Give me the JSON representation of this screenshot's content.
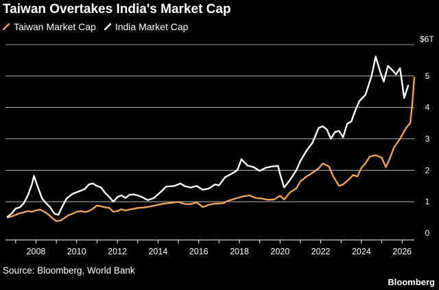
{
  "header": {
    "title": "Taiwan Overtakes India's Market Cap"
  },
  "footer": {
    "source": "Source: Bloomberg, World Bank",
    "brand": "Bloomberg"
  },
  "colors": {
    "background": "#000000",
    "taiwan": "#f0a35a",
    "india": "#ffffff",
    "grid": "#ffffff",
    "text": "#ffffff"
  },
  "chart_data": {
    "type": "line",
    "title": "Taiwan Overtakes India's Market Cap",
    "xlabel": "",
    "ylabel": "",
    "unit_label": "$6T",
    "xlim": [
      2006.5,
      2026.6
    ],
    "ylim": [
      0,
      6
    ],
    "x_ticks": [
      "2008",
      "2010",
      "2012",
      "2014",
      "2016",
      "2018",
      "2020",
      "2022",
      "2024",
      "2026"
    ],
    "y_ticks": [
      "0",
      "1",
      "2",
      "3",
      "4",
      "5"
    ],
    "grid": "horizontal",
    "legend_position": "top-left",
    "series": [
      {
        "name": "Taiwan Market Cap",
        "color": "#f0a35a",
        "points": [
          [
            2006.6,
            0.5
          ],
          [
            2006.8,
            0.53
          ],
          [
            2007.0,
            0.58
          ],
          [
            2007.2,
            0.63
          ],
          [
            2007.4,
            0.66
          ],
          [
            2007.6,
            0.7
          ],
          [
            2007.8,
            0.68
          ],
          [
            2008.0,
            0.72
          ],
          [
            2008.2,
            0.75
          ],
          [
            2008.4,
            0.68
          ],
          [
            2008.6,
            0.6
          ],
          [
            2008.8,
            0.48
          ],
          [
            2009.0,
            0.38
          ],
          [
            2009.2,
            0.4
          ],
          [
            2009.4,
            0.48
          ],
          [
            2009.6,
            0.57
          ],
          [
            2009.8,
            0.62
          ],
          [
            2010.0,
            0.68
          ],
          [
            2010.2,
            0.7
          ],
          [
            2010.4,
            0.67
          ],
          [
            2010.6,
            0.7
          ],
          [
            2010.8,
            0.78
          ],
          [
            2011.0,
            0.88
          ],
          [
            2011.2,
            0.85
          ],
          [
            2011.4,
            0.82
          ],
          [
            2011.6,
            0.8
          ],
          [
            2011.8,
            0.68
          ],
          [
            2012.0,
            0.7
          ],
          [
            2012.2,
            0.76
          ],
          [
            2012.4,
            0.72
          ],
          [
            2012.6,
            0.75
          ],
          [
            2012.8,
            0.77
          ],
          [
            2013.0,
            0.8
          ],
          [
            2013.4,
            0.82
          ],
          [
            2013.8,
            0.87
          ],
          [
            2014.2,
            0.93
          ],
          [
            2014.6,
            0.96
          ],
          [
            2015.0,
            0.99
          ],
          [
            2015.3,
            0.93
          ],
          [
            2015.6,
            0.92
          ],
          [
            2015.9,
            0.98
          ],
          [
            2016.2,
            0.83
          ],
          [
            2016.5,
            0.9
          ],
          [
            2016.8,
            0.94
          ],
          [
            2017.2,
            0.95
          ],
          [
            2017.4,
            1.02
          ],
          [
            2017.8,
            1.1
          ],
          [
            2018.2,
            1.17
          ],
          [
            2018.5,
            1.2
          ],
          [
            2018.8,
            1.12
          ],
          [
            2019.1,
            1.1
          ],
          [
            2019.4,
            1.06
          ],
          [
            2019.7,
            1.07
          ],
          [
            2020.0,
            1.19
          ],
          [
            2020.2,
            1.07
          ],
          [
            2020.5,
            1.3
          ],
          [
            2020.8,
            1.42
          ],
          [
            2021.0,
            1.65
          ],
          [
            2021.3,
            1.8
          ],
          [
            2021.6,
            1.92
          ],
          [
            2021.9,
            2.06
          ],
          [
            2022.1,
            2.22
          ],
          [
            2022.4,
            2.12
          ],
          [
            2022.6,
            1.82
          ],
          [
            2022.9,
            1.5
          ],
          [
            2023.1,
            1.55
          ],
          [
            2023.4,
            1.72
          ],
          [
            2023.6,
            1.85
          ],
          [
            2023.8,
            1.8
          ],
          [
            2024.0,
            2.08
          ],
          [
            2024.2,
            2.22
          ],
          [
            2024.4,
            2.43
          ],
          [
            2024.7,
            2.48
          ],
          [
            2025.0,
            2.4
          ],
          [
            2025.2,
            2.1
          ],
          [
            2025.4,
            2.38
          ],
          [
            2025.6,
            2.72
          ],
          [
            2025.9,
            3.0
          ],
          [
            2026.2,
            3.35
          ],
          [
            2026.4,
            3.5
          ],
          [
            2026.5,
            4.1
          ],
          [
            2026.6,
            4.95
          ]
        ]
      },
      {
        "name": "India Market Cap",
        "color": "#ffffff",
        "points": [
          [
            2006.6,
            0.52
          ],
          [
            2006.8,
            0.62
          ],
          [
            2007.0,
            0.78
          ],
          [
            2007.2,
            0.82
          ],
          [
            2007.4,
            0.95
          ],
          [
            2007.6,
            1.2
          ],
          [
            2007.8,
            1.55
          ],
          [
            2007.9,
            1.82
          ],
          [
            2008.1,
            1.45
          ],
          [
            2008.3,
            1.1
          ],
          [
            2008.5,
            0.95
          ],
          [
            2008.7,
            0.82
          ],
          [
            2008.9,
            0.62
          ],
          [
            2009.1,
            0.58
          ],
          [
            2009.3,
            0.85
          ],
          [
            2009.5,
            1.1
          ],
          [
            2009.8,
            1.25
          ],
          [
            2010.0,
            1.3
          ],
          [
            2010.2,
            1.35
          ],
          [
            2010.4,
            1.4
          ],
          [
            2010.6,
            1.55
          ],
          [
            2010.8,
            1.58
          ],
          [
            2011.0,
            1.5
          ],
          [
            2011.2,
            1.45
          ],
          [
            2011.4,
            1.28
          ],
          [
            2011.6,
            1.15
          ],
          [
            2011.8,
            1.0
          ],
          [
            2012.0,
            1.15
          ],
          [
            2012.2,
            1.2
          ],
          [
            2012.4,
            1.12
          ],
          [
            2012.6,
            1.22
          ],
          [
            2012.8,
            1.23
          ],
          [
            2013.0,
            1.2
          ],
          [
            2013.2,
            1.15
          ],
          [
            2013.5,
            1.05
          ],
          [
            2013.8,
            1.12
          ],
          [
            2014.2,
            1.35
          ],
          [
            2014.4,
            1.48
          ],
          [
            2014.8,
            1.5
          ],
          [
            2015.1,
            1.58
          ],
          [
            2015.3,
            1.5
          ],
          [
            2015.6,
            1.45
          ],
          [
            2015.9,
            1.5
          ],
          [
            2016.2,
            1.38
          ],
          [
            2016.5,
            1.42
          ],
          [
            2016.8,
            1.55
          ],
          [
            2017.0,
            1.52
          ],
          [
            2017.3,
            1.78
          ],
          [
            2017.6,
            1.88
          ],
          [
            2017.9,
            2.0
          ],
          [
            2018.1,
            2.35
          ],
          [
            2018.4,
            2.15
          ],
          [
            2018.7,
            2.1
          ],
          [
            2019.0,
            1.98
          ],
          [
            2019.3,
            2.08
          ],
          [
            2019.6,
            2.12
          ],
          [
            2019.9,
            2.14
          ],
          [
            2020.0,
            1.88
          ],
          [
            2020.2,
            1.45
          ],
          [
            2020.5,
            1.7
          ],
          [
            2020.8,
            2.0
          ],
          [
            2021.0,
            2.3
          ],
          [
            2021.3,
            2.62
          ],
          [
            2021.6,
            2.88
          ],
          [
            2021.9,
            3.35
          ],
          [
            2022.1,
            3.4
          ],
          [
            2022.3,
            3.3
          ],
          [
            2022.5,
            3.0
          ],
          [
            2022.7,
            3.22
          ],
          [
            2022.9,
            3.25
          ],
          [
            2023.1,
            3.05
          ],
          [
            2023.3,
            3.48
          ],
          [
            2023.5,
            3.55
          ],
          [
            2023.7,
            3.9
          ],
          [
            2023.9,
            4.2
          ],
          [
            2024.2,
            4.4
          ],
          [
            2024.5,
            5.0
          ],
          [
            2024.7,
            5.62
          ],
          [
            2024.9,
            5.18
          ],
          [
            2025.1,
            4.82
          ],
          [
            2025.3,
            5.32
          ],
          [
            2025.5,
            5.2
          ],
          [
            2025.7,
            5.05
          ],
          [
            2025.9,
            5.25
          ],
          [
            2026.1,
            4.3
          ],
          [
            2026.3,
            4.7
          ]
        ]
      }
    ]
  }
}
